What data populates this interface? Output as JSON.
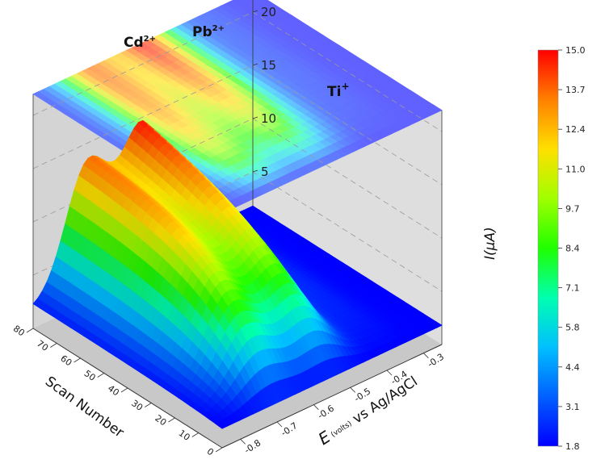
{
  "chart_data": {
    "type": "surface3d",
    "xlabel": "E",
    "xlabel_unit": "(volts)",
    "xlabel_suffix": "vs Ag/AgCl",
    "ylabel": "Scan Number",
    "zlabel": "I(µA)",
    "xlim": [
      -0.85,
      -0.25
    ],
    "ylim": [
      0,
      80
    ],
    "zlim": [
      0,
      22
    ],
    "x_ticks": [
      "-0.8",
      "-0.7",
      "-0.6",
      "-0.5",
      "-0.4",
      "-0.3"
    ],
    "y_ticks": [
      "0",
      "10",
      "20",
      "30",
      "40",
      "50",
      "60",
      "70",
      "80"
    ],
    "z_ticks": [
      "5",
      "10",
      "15",
      "20"
    ],
    "colorbar": {
      "ticks": [
        "15.0",
        "13.7",
        "12.4",
        "11.0",
        "9.7",
        "8.4",
        "7.1",
        "5.8",
        "4.4",
        "3.1",
        "1.8"
      ],
      "min": 1.8,
      "max": 15.0
    },
    "peaks": [
      {
        "name_base": "Cd",
        "name_sup": "2+",
        "potential": -0.7,
        "max_current": 13.5
      },
      {
        "name_base": "Pb",
        "name_sup": "2+",
        "potential": -0.55,
        "max_current": 14.5
      },
      {
        "name_base": "Ti",
        "name_sup": "+",
        "potential": -0.38,
        "max_current": 2.5
      }
    ],
    "baseline_current": 1.8,
    "grid": true,
    "colorbar_placement": "right"
  }
}
